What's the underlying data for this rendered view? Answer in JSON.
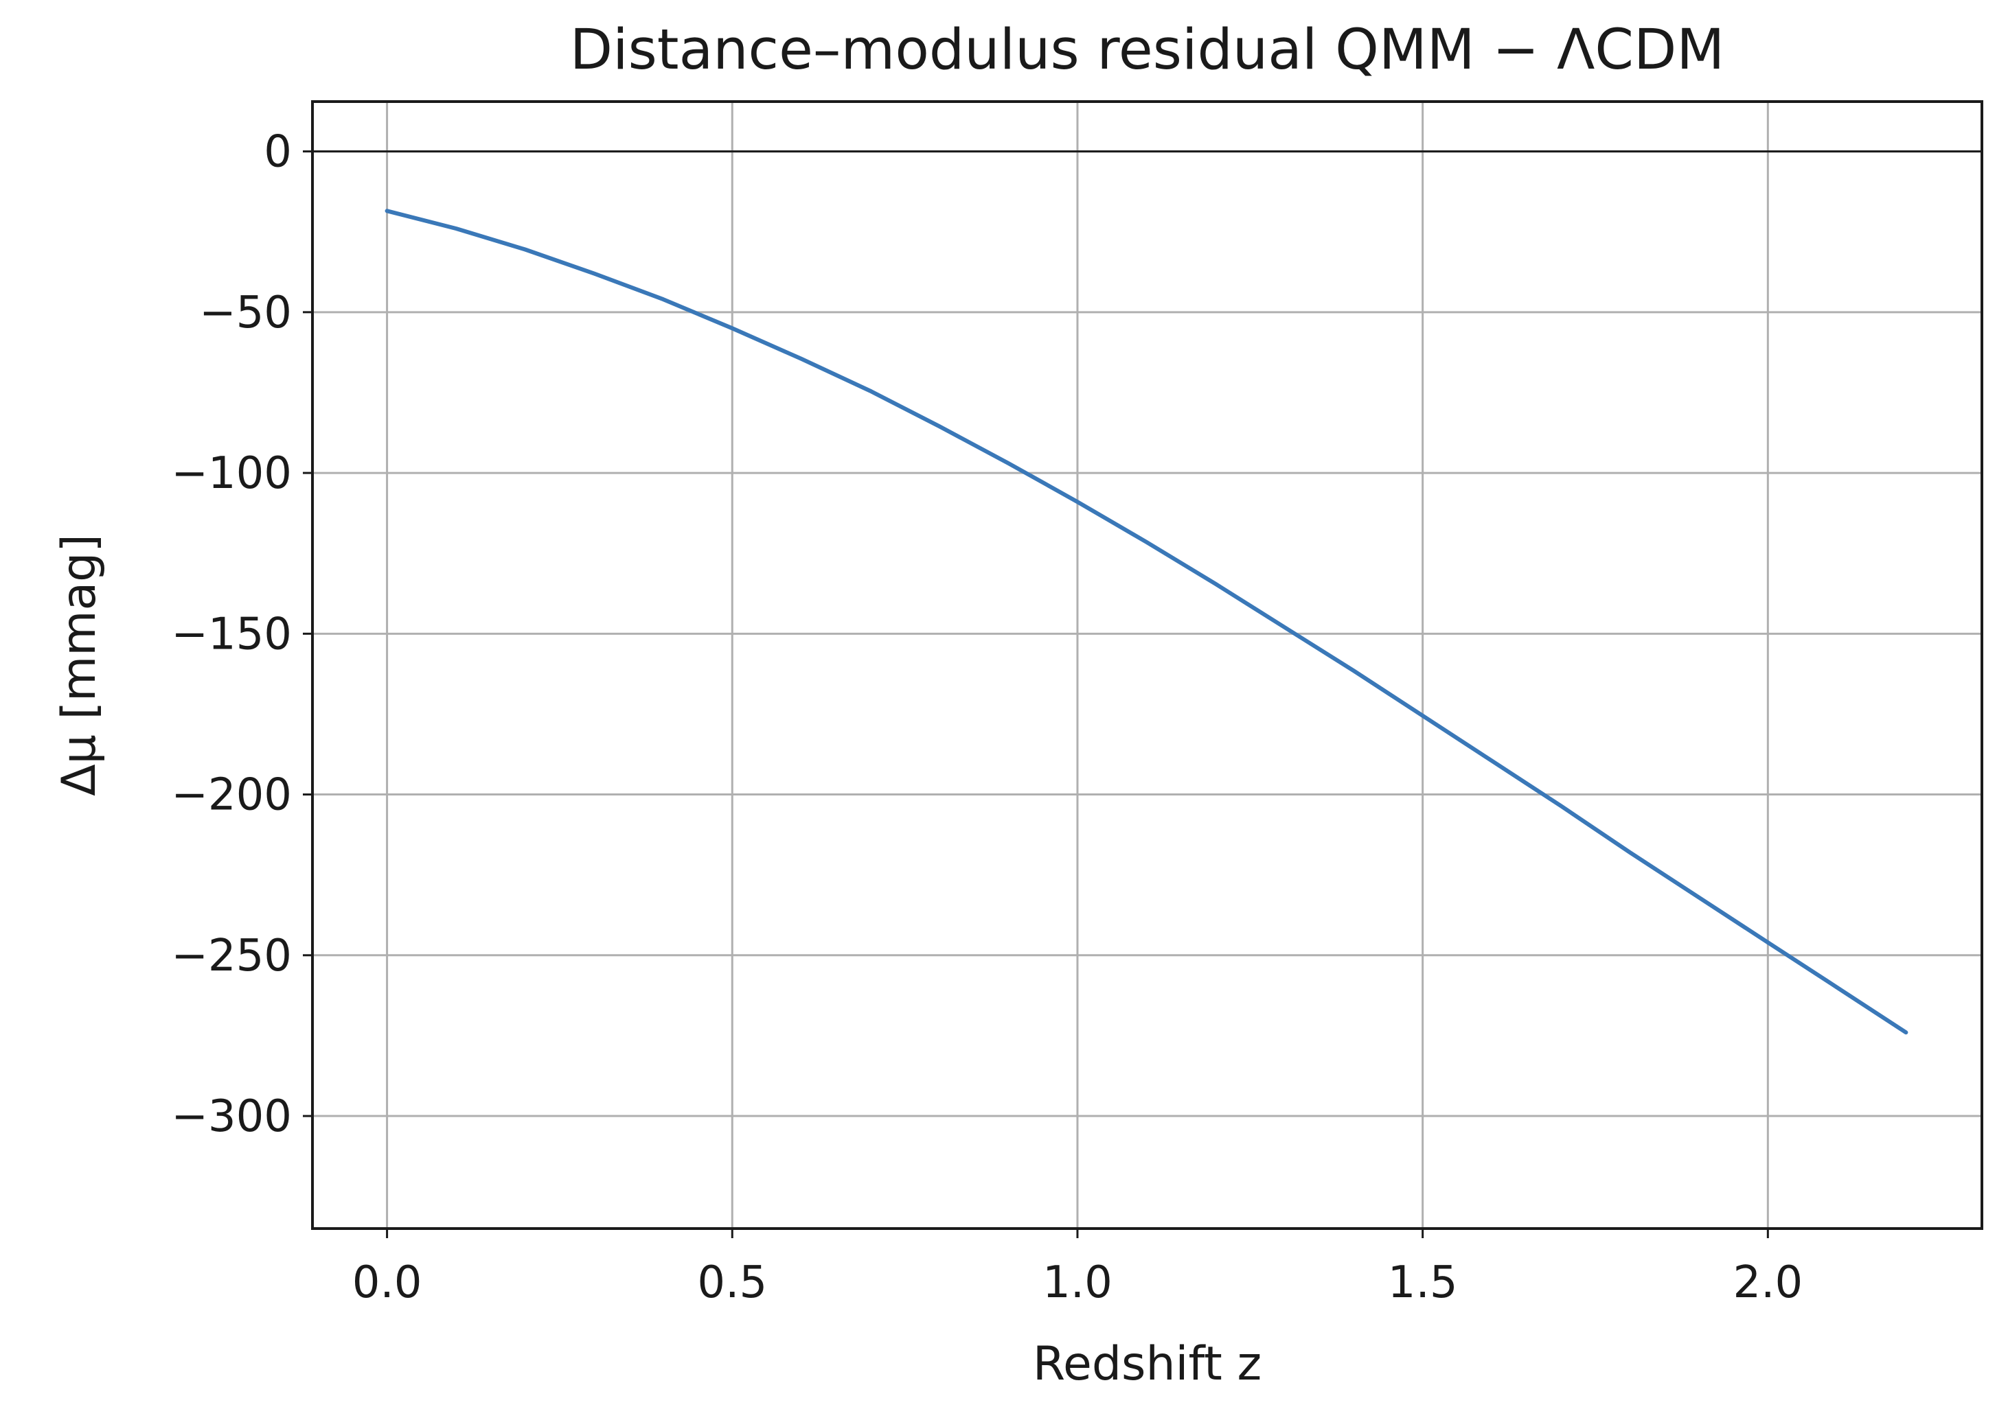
{
  "chart_data": {
    "type": "line",
    "title": "Distance–modulus residual QMM − ΛCDM",
    "xlabel": "Redshift z",
    "ylabel": "Δμ [mmag]",
    "xlim": [
      -0.108,
      2.31
    ],
    "ylim": [
      -335,
      15.5
    ],
    "x_ticks": [
      0.0,
      0.5,
      1.0,
      1.5,
      2.0
    ],
    "x_tick_labels": [
      "0.0",
      "0.5",
      "1.0",
      "1.5",
      "2.0"
    ],
    "y_ticks": [
      0,
      -50,
      -100,
      -150,
      -200,
      -250,
      -300
    ],
    "y_tick_labels": [
      "0",
      "−50",
      "−100",
      "−150",
      "−200",
      "−250",
      "−300"
    ],
    "grid": true,
    "reference_line": 0,
    "series": [
      {
        "color": "#3a78b8",
        "x": [
          0.0,
          0.1,
          0.2,
          0.3,
          0.4,
          0.5,
          0.6,
          0.7,
          0.8,
          0.9,
          1.0,
          1.1,
          1.2,
          1.3,
          1.4,
          1.5,
          1.6,
          1.7,
          1.8,
          1.9,
          2.0,
          2.1,
          2.2
        ],
        "y": [
          -18.5,
          -24,
          -30.5,
          -38,
          -46,
          -55,
          -64.5,
          -74.5,
          -85.5,
          -97,
          -109,
          -121.5,
          -134.5,
          -148,
          -161.5,
          -175.5,
          -189.5,
          -203.5,
          -218,
          -232,
          -246,
          -260,
          -274
        ]
      }
    ]
  }
}
